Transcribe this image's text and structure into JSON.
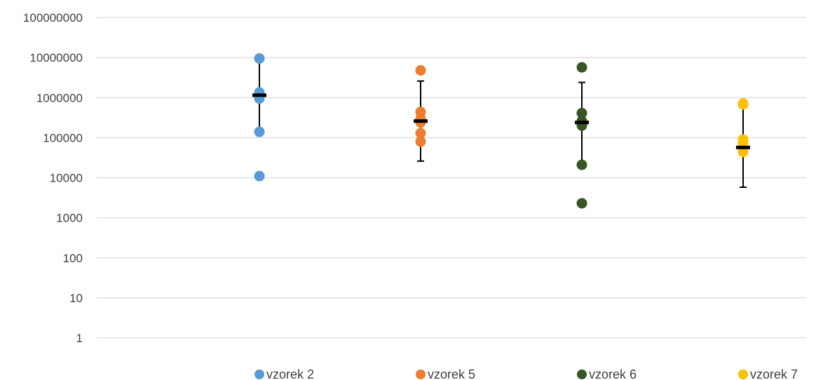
{
  "chart_data": {
    "type": "scatter",
    "title": "",
    "xlabel": "",
    "ylabel": "",
    "yscale": "log",
    "ylim": [
      1,
      100000000
    ],
    "grid": true,
    "legend_position": "bottom",
    "y_ticks": [
      "1",
      "10",
      "100",
      "1000",
      "10000",
      "100000",
      "1000000",
      "10000000",
      "100000000"
    ],
    "series": [
      {
        "name": "vzorek 2",
        "color": "#5B9BD5",
        "values": [
          9500000,
          1350000,
          1100000,
          950000,
          140000,
          11000
        ],
        "mean": 1150000,
        "error_high": 9000000,
        "error_low": 150000
      },
      {
        "name": "vzorek 5",
        "color": "#ED7D31",
        "values": [
          4800000,
          440000,
          300000,
          240000,
          130000,
          80000
        ],
        "mean": 260000,
        "error_high": 2600000,
        "error_low": 26000
      },
      {
        "name": "vzorek 6",
        "color": "#375623",
        "values": [
          5700000,
          410000,
          260000,
          200000,
          21000,
          2300
        ],
        "mean": 240000,
        "error_high": 2400000,
        "error_low": 24000
      },
      {
        "name": "vzorek 7",
        "color": "#FFC000",
        "values": [
          720000,
          680000,
          90000,
          75000,
          55000,
          44000
        ],
        "mean": 57000,
        "error_high": 580000,
        "error_low": 5800
      }
    ]
  }
}
